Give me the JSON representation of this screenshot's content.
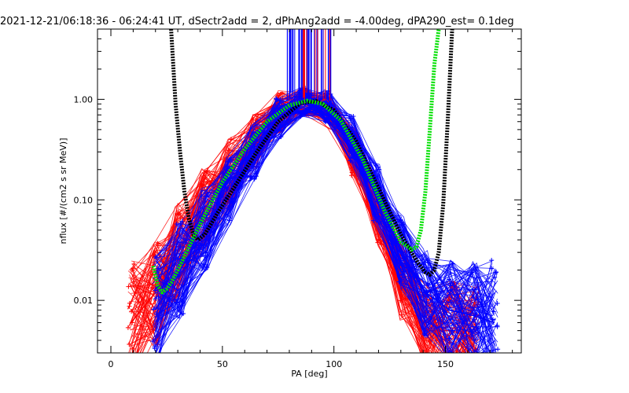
{
  "chart_data": {
    "type": "line",
    "title": "2021-12-21/06:18:36 - 06:24:41 UT, dSectr2add = 2, dPhAng2add = -4.00deg, dPA290_est=   0.1deg",
    "xlabel": "PA [deg]",
    "ylabel": "nflux [#/(cm2 s sr MeV)]",
    "xlim": [
      -6,
      184
    ],
    "ylim": [
      0.003,
      5
    ],
    "yscale": "log",
    "xticks": [
      0,
      50,
      100,
      150
    ],
    "xtick_labels": [
      "0",
      "50",
      "100",
      "150"
    ],
    "yticks": [
      0.01,
      0.1,
      1.0
    ],
    "ytick_labels": [
      "0.01",
      "0.10",
      "1.00"
    ],
    "grid": false,
    "legend": "none",
    "colors": {
      "series_red": "#ff0000",
      "series_blue": "#0000ff",
      "fit_black": "#000000",
      "fit_green": "#00e000",
      "axes": "#000000"
    },
    "series": [
      {
        "color": "red",
        "x": [
          9,
          20,
          30,
          42,
          53,
          65,
          76,
          87,
          98,
          109,
          120,
          131,
          142,
          153,
          164
        ],
        "y": [
          0.006,
          0.012,
          0.03,
          0.08,
          0.18,
          0.4,
          0.75,
          0.95,
          0.75,
          0.3,
          0.07,
          0.015,
          0.005,
          0.005,
          0.004
        ]
      },
      {
        "color": "blue",
        "x": [
          20,
          31,
          42,
          53,
          64,
          75,
          86,
          97,
          108,
          119,
          130,
          141,
          152,
          163,
          172
        ],
        "y": [
          0.008,
          0.02,
          0.05,
          0.12,
          0.3,
          0.62,
          0.95,
          0.85,
          0.42,
          0.12,
          0.03,
          0.012,
          0.008,
          0.007,
          0.006
        ]
      }
    ],
    "fit_curves": [
      {
        "color": "black",
        "x": [
          27,
          29,
          31,
          33,
          35,
          37,
          39,
          42,
          48,
          55,
          65,
          75,
          85,
          92,
          100,
          110,
          120,
          130,
          138,
          141,
          143,
          145,
          147,
          149,
          151,
          153
        ],
        "y": [
          5.0,
          0.9,
          0.3,
          0.12,
          0.065,
          0.045,
          0.04,
          0.045,
          0.075,
          0.13,
          0.29,
          0.6,
          0.92,
          0.96,
          0.78,
          0.38,
          0.13,
          0.045,
          0.023,
          0.019,
          0.018,
          0.02,
          0.03,
          0.09,
          0.6,
          5.0
        ]
      },
      {
        "color": "green",
        "x": [
          19,
          21,
          23,
          25,
          27,
          30,
          35,
          42,
          50,
          60,
          70,
          80,
          88,
          95,
          103,
          113,
          123,
          130,
          135,
          137,
          139,
          141,
          143,
          145,
          147
        ],
        "y": [
          0.022,
          0.014,
          0.012,
          0.013,
          0.015,
          0.02,
          0.034,
          0.07,
          0.15,
          0.32,
          0.6,
          0.87,
          0.97,
          0.9,
          0.62,
          0.25,
          0.075,
          0.038,
          0.032,
          0.034,
          0.05,
          0.12,
          0.5,
          2.2,
          5.0
        ]
      }
    ]
  }
}
